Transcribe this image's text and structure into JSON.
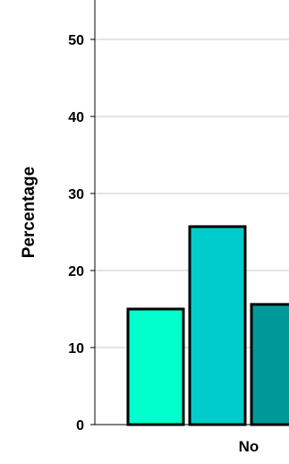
{
  "chart_data": {
    "type": "bar",
    "ylabel": "Percentage",
    "xlabel": "",
    "ylim": [
      0,
      55
    ],
    "yticks": [
      0,
      10,
      20,
      30,
      40,
      50
    ],
    "grid": true,
    "categories": [
      "No"
    ],
    "series": [
      {
        "values": [
          15
        ],
        "color": "#00ffcc"
      },
      {
        "values": [
          25.7
        ],
        "color": "#00cccc"
      },
      {
        "values": [
          15.6
        ],
        "color": "#009999"
      }
    ]
  }
}
